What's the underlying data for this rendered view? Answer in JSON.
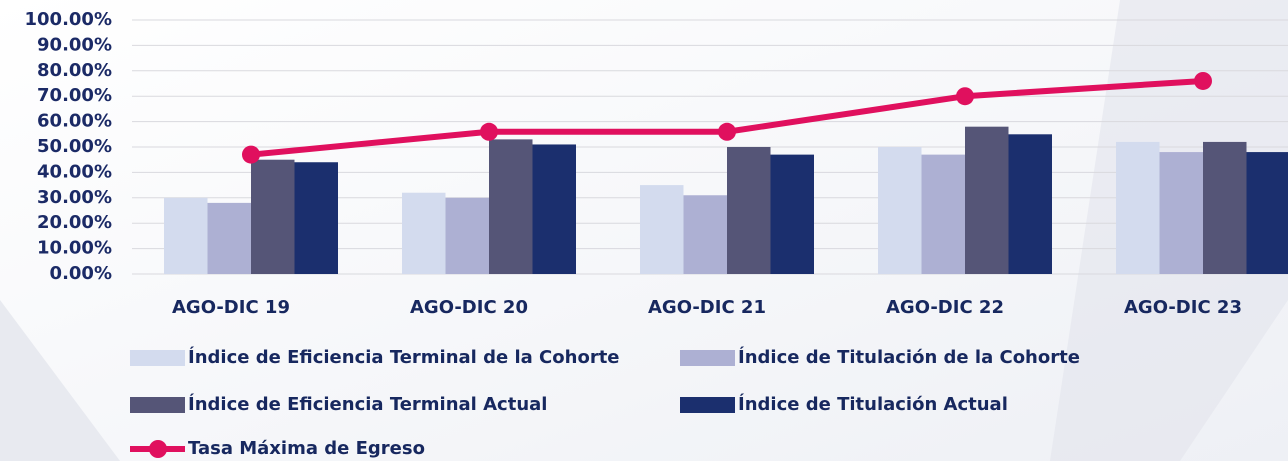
{
  "chart_data": {
    "type": "bar",
    "categories": [
      "AGO-DIC 19",
      "AGO-DIC 20",
      "AGO-DIC 21",
      "AGO-DIC 22",
      "AGO-DIC 23"
    ],
    "series": [
      {
        "name": "Índice de Eficiencia Terminal de la Cohorte",
        "color": "#d3dbee",
        "values": [
          30,
          32,
          35,
          50,
          52
        ]
      },
      {
        "name": "Índice de Titulación de la Cohorte",
        "color": "#adb0d3",
        "values": [
          28,
          30,
          31,
          47,
          48
        ]
      },
      {
        "name": "Índice de Eficiencia Terminal Actual",
        "color": "#555577",
        "values": [
          45,
          53,
          50,
          58,
          52
        ]
      },
      {
        "name": "Índice de Titulación Actual",
        "color": "#1b2f6e",
        "values": [
          44,
          51,
          47,
          55,
          48
        ]
      },
      {
        "name": "Tasa Máxima de Egreso",
        "color": "#e0105e",
        "type": "line",
        "values": [
          47,
          56,
          56,
          70,
          76
        ]
      }
    ],
    "ylim": [
      0,
      100
    ],
    "yticks": [
      {
        "value": 0,
        "label": "0.00%"
      },
      {
        "value": 10,
        "label": "10.00%"
      },
      {
        "value": 20,
        "label": "20.00%"
      },
      {
        "value": 30,
        "label": "30.00%"
      },
      {
        "value": 40,
        "label": "40.00%"
      },
      {
        "value": 50,
        "label": "50.00%"
      },
      {
        "value": 60,
        "label": "60.00%"
      },
      {
        "value": 70,
        "label": "70.00%"
      },
      {
        "value": 80,
        "label": "80.00%"
      },
      {
        "value": 90,
        "label": "90.00%"
      },
      {
        "value": 100,
        "label": "100.00%"
      }
    ],
    "grid": true
  }
}
